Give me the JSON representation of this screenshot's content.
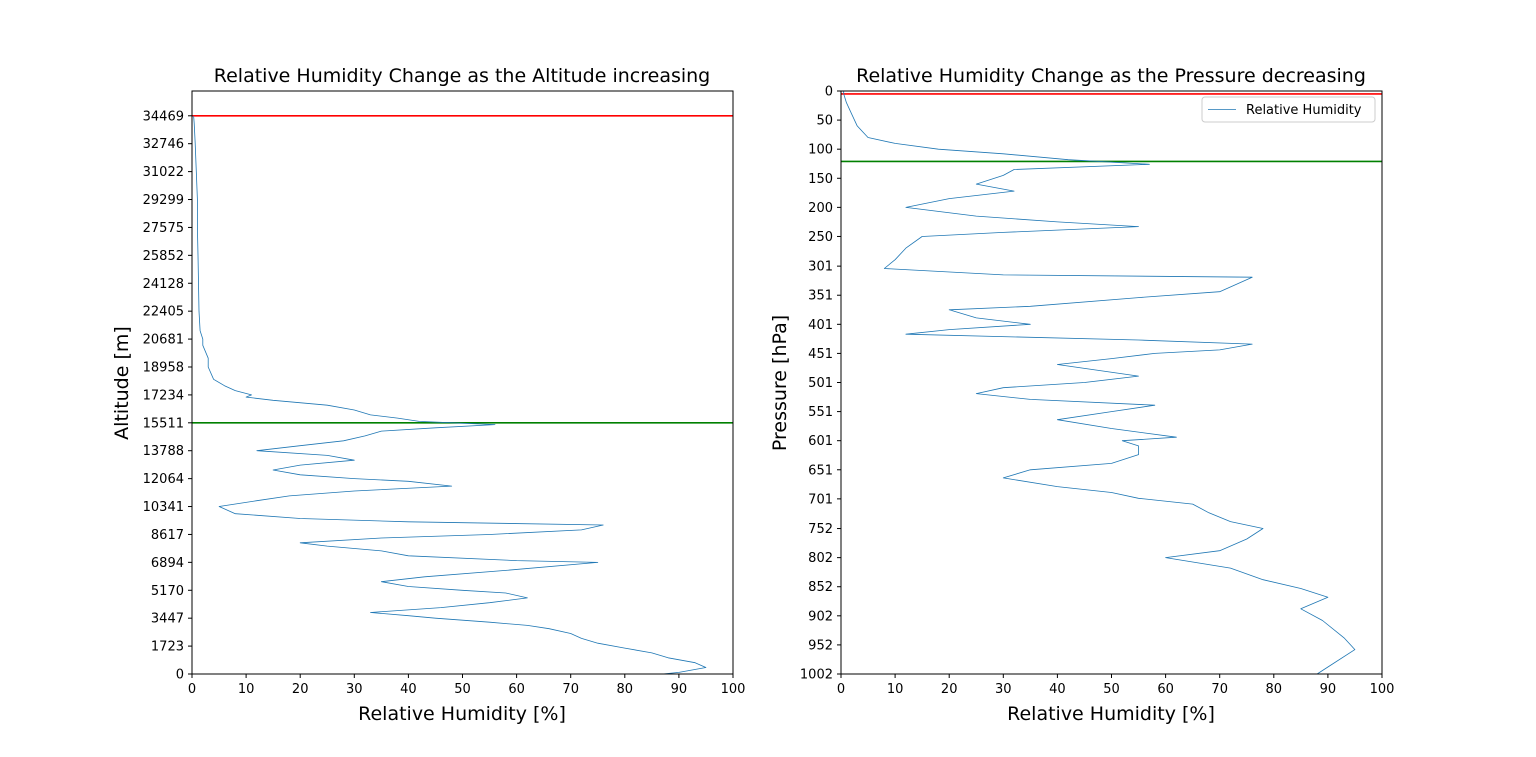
{
  "chart_data": [
    {
      "type": "line",
      "title": "Relative Humidity Change as the Altitude increasing",
      "xlabel": "Relative Humidity [%]",
      "ylabel": "Altitude [m]",
      "xlim": [
        0,
        100
      ],
      "ylim": [
        0,
        36000
      ],
      "xticks": [
        0,
        10,
        20,
        30,
        40,
        50,
        60,
        70,
        80,
        90,
        100
      ],
      "yticks": [
        0,
        1723,
        3447,
        5170,
        6894,
        8617,
        10341,
        12064,
        13788,
        15511,
        17234,
        18958,
        20681,
        22405,
        24128,
        25852,
        27575,
        29299,
        31022,
        32746,
        34469
      ],
      "grid": false,
      "series": [
        {
          "color": "#1f77b4",
          "points": [
            [
              87,
              0
            ],
            [
              90,
              100
            ],
            [
              95,
              400
            ],
            [
              93,
              700
            ],
            [
              88,
              1000
            ],
            [
              85,
              1300
            ],
            [
              80,
              1600
            ],
            [
              75,
              1900
            ],
            [
              72,
              2200
            ],
            [
              70,
              2500
            ],
            [
              66,
              2800
            ],
            [
              62,
              3000
            ],
            [
              55,
              3200
            ],
            [
              45,
              3447
            ],
            [
              40,
              3600
            ],
            [
              33,
              3800
            ],
            [
              46,
              4100
            ],
            [
              55,
              4400
            ],
            [
              62,
              4700
            ],
            [
              58,
              5000
            ],
            [
              50,
              5170
            ],
            [
              40,
              5400
            ],
            [
              35,
              5700
            ],
            [
              43,
              6000
            ],
            [
              58,
              6400
            ],
            [
              75,
              6894
            ],
            [
              60,
              7000
            ],
            [
              40,
              7300
            ],
            [
              35,
              7600
            ],
            [
              25,
              7900
            ],
            [
              20,
              8100
            ],
            [
              35,
              8400
            ],
            [
              55,
              8617
            ],
            [
              72,
              8900
            ],
            [
              76,
              9200
            ],
            [
              40,
              9400
            ],
            [
              20,
              9600
            ],
            [
              8,
              9900
            ],
            [
              5,
              10341
            ],
            [
              12,
              10700
            ],
            [
              18,
              11000
            ],
            [
              30,
              11300
            ],
            [
              48,
              11600
            ],
            [
              40,
              11900
            ],
            [
              30,
              12064
            ],
            [
              20,
              12300
            ],
            [
              15,
              12600
            ],
            [
              20,
              12900
            ],
            [
              30,
              13200
            ],
            [
              25,
              13500
            ],
            [
              12,
              13788
            ],
            [
              20,
              14100
            ],
            [
              28,
              14400
            ],
            [
              32,
              14700
            ],
            [
              35,
              15000
            ],
            [
              45,
              15200
            ],
            [
              56,
              15400
            ],
            [
              42,
              15600
            ],
            [
              38,
              15800
            ],
            [
              33,
              16000
            ],
            [
              30,
              16300
            ],
            [
              25,
              16600
            ],
            [
              15,
              16900
            ],
            [
              10,
              17100
            ],
            [
              11,
              17234
            ],
            [
              8,
              17500
            ],
            [
              6,
              17800
            ],
            [
              4,
              18200
            ],
            [
              3,
              18958
            ],
            [
              3,
              19500
            ],
            [
              2,
              20300
            ],
            [
              2,
              20681
            ],
            [
              1.5,
              21200
            ],
            [
              1.3,
              22405
            ],
            [
              1.2,
              24128
            ],
            [
              1.1,
              25852
            ],
            [
              1,
              27575
            ],
            [
              1,
              29299
            ],
            [
              0.8,
              31022
            ],
            [
              0.6,
              32746
            ],
            [
              0.4,
              34000
            ],
            [
              0.3,
              34469
            ]
          ]
        }
      ],
      "hlines": [
        {
          "y": 34469,
          "color": "#ff0000"
        },
        {
          "y": 15511,
          "color": "#008000"
        }
      ]
    },
    {
      "type": "line",
      "title": "Relative Humidity Change as the Pressure decreasing",
      "xlabel": "Relative Humidity [%]",
      "ylabel": "Pressure [hPa]",
      "xlim": [
        0,
        100
      ],
      "ylim": [
        1002,
        0
      ],
      "xticks": [
        0,
        10,
        20,
        30,
        40,
        50,
        60,
        70,
        80,
        90,
        100
      ],
      "yticks": [
        0,
        50,
        100,
        150,
        200,
        250,
        301,
        351,
        401,
        451,
        501,
        551,
        601,
        651,
        701,
        752,
        802,
        852,
        902,
        952,
        1002
      ],
      "grid": false,
      "legend": {
        "position": "top-right",
        "entries": [
          "Relative Humidity"
        ]
      },
      "series": [
        {
          "name": "Relative Humidity",
          "color": "#1f77b4",
          "points": [
            [
              88,
              1002
            ],
            [
              90,
              990
            ],
            [
              95,
              960
            ],
            [
              93,
              940
            ],
            [
              89,
              910
            ],
            [
              85,
              890
            ],
            [
              90,
              870
            ],
            [
              85,
              855
            ],
            [
              78,
              840
            ],
            [
              72,
              820
            ],
            [
              60,
              802
            ],
            [
              70,
              790
            ],
            [
              75,
              770
            ],
            [
              78,
              752
            ],
            [
              72,
              740
            ],
            [
              68,
              725
            ],
            [
              65,
              710
            ],
            [
              55,
              700
            ],
            [
              50,
              690
            ],
            [
              40,
              680
            ],
            [
              30,
              665
            ],
            [
              35,
              651
            ],
            [
              50,
              640
            ],
            [
              55,
              625
            ],
            [
              55,
              610
            ],
            [
              52,
              601
            ],
            [
              62,
              595
            ],
            [
              50,
              580
            ],
            [
              40,
              565
            ],
            [
              50,
              551
            ],
            [
              58,
              540
            ],
            [
              35,
              530
            ],
            [
              25,
              520
            ],
            [
              30,
              510
            ],
            [
              45,
              501
            ],
            [
              55,
              490
            ],
            [
              40,
              470
            ],
            [
              50,
              460
            ],
            [
              58,
              451
            ],
            [
              70,
              445
            ],
            [
              76,
              435
            ],
            [
              55,
              428
            ],
            [
              12,
              418
            ],
            [
              20,
              410
            ],
            [
              35,
              401
            ],
            [
              25,
              390
            ],
            [
              20,
              376
            ],
            [
              35,
              370
            ],
            [
              55,
              355
            ],
            [
              70,
              345
            ],
            [
              76,
              320
            ],
            [
              30,
              316
            ],
            [
              8,
              305
            ],
            [
              10,
              290
            ],
            [
              12,
              270
            ],
            [
              15,
              250
            ],
            [
              30,
              243
            ],
            [
              55,
              233
            ],
            [
              40,
              225
            ],
            [
              25,
              215
            ],
            [
              12,
              200
            ],
            [
              20,
              185
            ],
            [
              32,
              172
            ],
            [
              25,
              160
            ],
            [
              30,
              145
            ],
            [
              32,
              135
            ],
            [
              57,
              126
            ],
            [
              42,
              118
            ],
            [
              30,
              108
            ],
            [
              18,
              100
            ],
            [
              10,
              90
            ],
            [
              5,
              80
            ],
            [
              3,
              60
            ],
            [
              2,
              40
            ],
            [
              1,
              20
            ],
            [
              0.5,
              5
            ],
            [
              0.5,
              0
            ]
          ]
        }
      ],
      "hlines": [
        {
          "y": 5,
          "color": "#ff0000"
        },
        {
          "y": 121,
          "color": "#008000"
        }
      ]
    }
  ]
}
